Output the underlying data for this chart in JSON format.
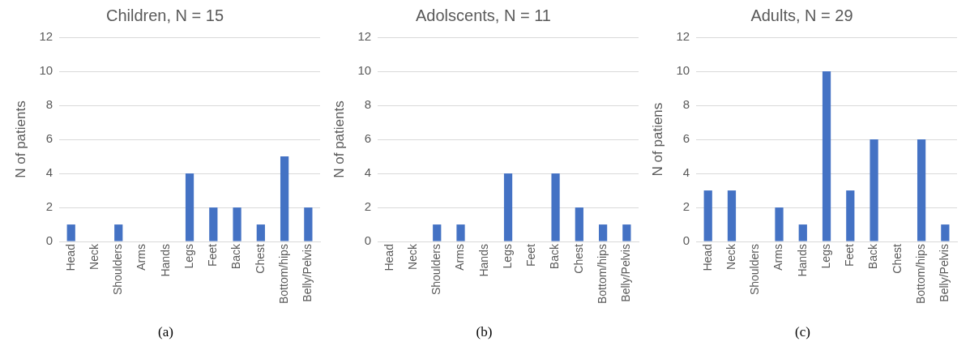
{
  "chart_data": [
    {
      "type": "bar",
      "title": "Children, N = 15",
      "ylabel": "N of patients",
      "categories": [
        "Head",
        "Neck",
        "Shoulders",
        "Arms",
        "Hands",
        "Legs",
        "Feet",
        "Back",
        "Chest",
        "Bottom/hips",
        "Belly/Pelvis"
      ],
      "values": [
        1,
        0,
        1,
        0,
        0,
        4,
        2,
        2,
        1,
        5,
        2
      ],
      "color": "#4472c4",
      "ylim": [
        0,
        12
      ],
      "yticks": [
        0,
        2,
        4,
        6,
        8,
        10,
        12
      ],
      "grid": "y",
      "legend": false,
      "annotations": [
        "(a)"
      ]
    },
    {
      "type": "bar",
      "title": "Adolscents, N = 11",
      "ylabel": "N of patients",
      "categories": [
        "Head",
        "Neck",
        "Shoulders",
        "Arms",
        "Hands",
        "Legs",
        "Feet",
        "Back",
        "Chest",
        "Bottom/hips",
        "Belly/Pelvis"
      ],
      "values": [
        0,
        0,
        1,
        1,
        0,
        4,
        0,
        4,
        2,
        1,
        1
      ],
      "color": "#4472c4",
      "ylim": [
        0,
        12
      ],
      "yticks": [
        0,
        2,
        4,
        6,
        8,
        10,
        12
      ],
      "grid": "y",
      "legend": false,
      "annotations": [
        "(b)"
      ]
    },
    {
      "type": "bar",
      "title": "Adults, N = 29",
      "ylabel": "N of patiens",
      "categories": [
        "Head",
        "Neck",
        "Shoulders",
        "Arms",
        "Hands",
        "Legs",
        "Feet",
        "Back",
        "Chest",
        "Bottom/hips",
        "Belly/Pelvis"
      ],
      "values": [
        3,
        3,
        0,
        2,
        1,
        10,
        3,
        6,
        0,
        6,
        1
      ],
      "color": "#4472c4",
      "ylim": [
        0,
        12
      ],
      "yticks": [
        0,
        2,
        4,
        6,
        8,
        10,
        12
      ],
      "grid": "y",
      "legend": false,
      "annotations": [
        "(c)"
      ]
    }
  ]
}
